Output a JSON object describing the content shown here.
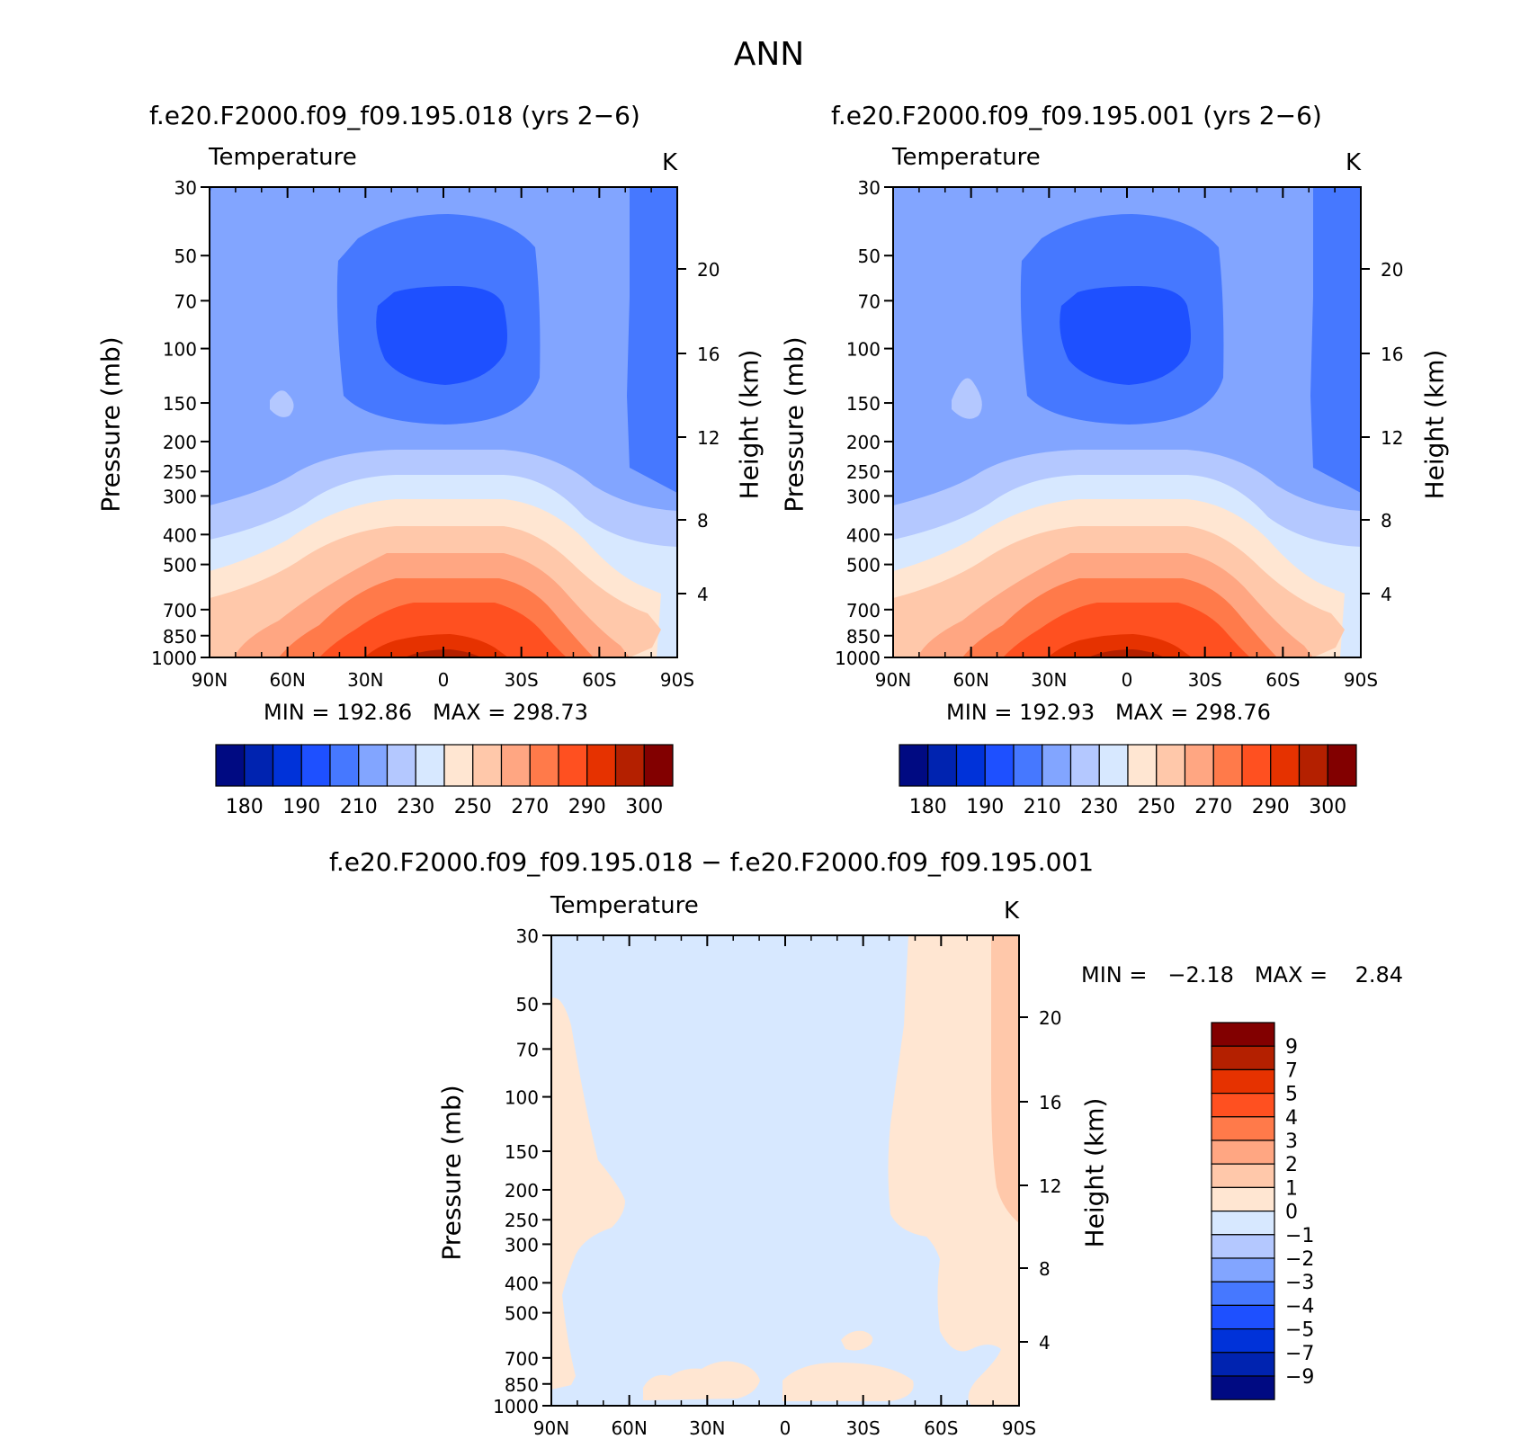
{
  "page_title": "ANN",
  "colors": {
    "ramp": [
      "#000a82",
      "#0023b0",
      "#0032d9",
      "#1e50ff",
      "#4678ff",
      "#82a5ff",
      "#b4c8ff",
      "#d7e8ff",
      "#ffe6d2",
      "#ffc8aa",
      "#ffa682",
      "#ff7a4a",
      "#ff5020",
      "#e63200",
      "#b42000",
      "#820000"
    ]
  },
  "panels": [
    {
      "id": "case1",
      "title": "f.e20.F2000.f09_f09.195.018 (yrs 2−6)",
      "variable": "Temperature",
      "units": "K",
      "ylabel": "Pressure (mb)",
      "ylabel_right": "Height (km)",
      "min_label": "MIN =",
      "min_value": "192.86",
      "max_label": "MAX =",
      "max_value": "298.73"
    },
    {
      "id": "case2",
      "title": "f.e20.F2000.f09_f09.195.001 (yrs 2−6)",
      "variable": "Temperature",
      "units": "K",
      "ylabel": "Pressure (mb)",
      "ylabel_right": "Height (km)",
      "min_label": "MIN =",
      "min_value": "192.93",
      "max_label": "MAX =",
      "max_value": "298.76"
    },
    {
      "id": "diff",
      "title": "f.e20.F2000.f09_f09.195.018 − f.e20.F2000.f09_f09.195.001",
      "variable": "Temperature",
      "units": "K",
      "ylabel": "Pressure (mb)",
      "ylabel_right": "Height (km)",
      "min_label": "MIN =",
      "min_value": "−2.18",
      "max_label": "MAX =",
      "max_value": "2.84"
    }
  ],
  "chart_data": [
    {
      "type": "heatmap",
      "title": "f.e20.F2000.f09_f09.195.018 (yrs 2−6)",
      "x_tick_labels": [
        "90N",
        "60N",
        "30N",
        "0",
        "30S",
        "60S",
        "90S"
      ],
      "y_tick_labels": [
        "30",
        "50",
        "70",
        "100",
        "150",
        "200",
        "250",
        "300",
        "400",
        "500",
        "700",
        "850",
        "1000"
      ],
      "y_right_tick_labels": [
        "20",
        "16",
        "12",
        "8",
        "4"
      ],
      "xlim": [
        90,
        -90
      ],
      "ylim": [
        1000,
        30
      ],
      "y_scale": "log",
      "colorbar_ticks": [
        "180",
        "190",
        "210",
        "230",
        "250",
        "270",
        "290",
        "300"
      ],
      "min": 192.86,
      "max": 298.73
    },
    {
      "type": "heatmap",
      "title": "f.e20.F2000.f09_f09.195.001 (yrs 2−6)",
      "x_tick_labels": [
        "90N",
        "60N",
        "30N",
        "0",
        "30S",
        "60S",
        "90S"
      ],
      "y_tick_labels": [
        "30",
        "50",
        "70",
        "100",
        "150",
        "200",
        "250",
        "300",
        "400",
        "500",
        "700",
        "850",
        "1000"
      ],
      "y_right_tick_labels": [
        "20",
        "16",
        "12",
        "8",
        "4"
      ],
      "xlim": [
        90,
        -90
      ],
      "ylim": [
        1000,
        30
      ],
      "y_scale": "log",
      "colorbar_ticks": [
        "180",
        "190",
        "210",
        "230",
        "250",
        "270",
        "290",
        "300"
      ],
      "min": 192.93,
      "max": 298.76
    },
    {
      "type": "heatmap",
      "title": "f.e20.F2000.f09_f09.195.018 − f.e20.F2000.f09_f09.195.001",
      "x_tick_labels": [
        "90N",
        "60N",
        "30N",
        "0",
        "30S",
        "60S",
        "90S"
      ],
      "y_tick_labels": [
        "30",
        "50",
        "70",
        "100",
        "150",
        "200",
        "250",
        "300",
        "400",
        "500",
        "700",
        "850",
        "1000"
      ],
      "y_right_tick_labels": [
        "20",
        "16",
        "12",
        "8",
        "4"
      ],
      "xlim": [
        90,
        -90
      ],
      "ylim": [
        1000,
        30
      ],
      "y_scale": "log",
      "colorbar_ticks": [
        "9",
        "7",
        "5",
        "4",
        "3",
        "2",
        "1",
        "0",
        "−1",
        "−2",
        "−3",
        "−4",
        "−5",
        "−7",
        "−9"
      ],
      "min": -2.18,
      "max": 2.84
    }
  ]
}
